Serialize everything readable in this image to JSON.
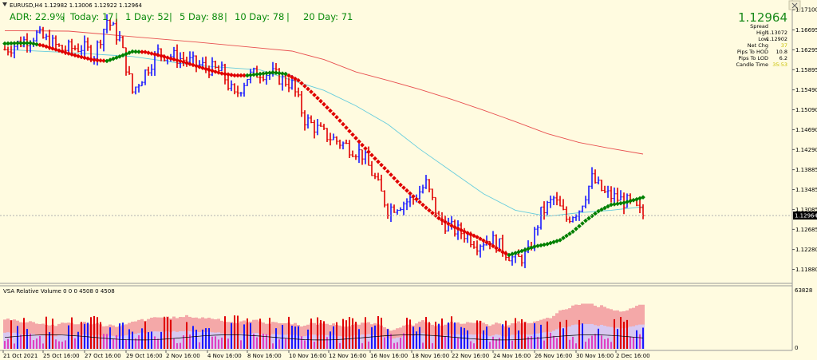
{
  "window": {
    "symbol_line": "EURUSD,H4  1.12982 1.13006 1.12922 1.12964"
  },
  "adr_bar": {
    "adr": "ADR: 22.9%",
    "today": "Today: 17",
    "day1": "1 Day: 52",
    "day5": "5 Day: 88",
    "day10": "10 Day: 78",
    "day20": "20 Day: 71",
    "sep": "|"
  },
  "info_panel": {
    "price": "1.12964",
    "spread_label": "Spread",
    "spread_value": "",
    "high_label": "High",
    "high_value": "1.13072",
    "low_label": "Low",
    "low_value": "1.12902",
    "netchg_label": "Net Chg",
    "netchg_value": "37",
    "hod_label": "Pips To HOD",
    "hod_value": "10.8",
    "lod_label": "Pips To LOD",
    "lod_value": "6.2",
    "candle_label": "Candle Time",
    "candle_value": "35:53"
  },
  "price_axis": {
    "labels": [
      "1.17100",
      "1.16695",
      "1.16295",
      "1.15895",
      "1.15490",
      "1.15090",
      "1.14690",
      "1.14290",
      "1.13885",
      "1.13485",
      "1.13085",
      "1.12685",
      "1.12280",
      "1.11880"
    ],
    "current_label": "1.12964"
  },
  "volume_panel": {
    "title": "VSA Relative Volume 0 0 0 4508 0 4508",
    "axis_top": "63828",
    "axis_bottom": "0"
  },
  "time_axis": {
    "labels": [
      "21 Oct 2021",
      "25 Oct 16:00",
      "27 Oct 16:00",
      "29 Oct 16:00",
      "2 Nov 16:00",
      "4 Nov 16:00",
      "8 Nov 16:00",
      "10 Nov 16:00",
      "12 Nov 16:00",
      "16 Nov 16:00",
      "18 Nov 16:00",
      "22 Nov 16:00",
      "24 Nov 16:00",
      "26 Nov 16:00",
      "30 Nov 16:00",
      "2 Dec 16:00"
    ]
  },
  "colors": {
    "background": "#fffbe0",
    "bull_bar": "#1a1aff",
    "bear_bar": "#e00000",
    "trend_up": "#008000",
    "trend_down": "#e00000",
    "sma_red": "#e85050",
    "sma_cyan": "#66ccdd",
    "price_green": "#1a8a1a"
  },
  "chart_data": {
    "type": "bar",
    "symbol": "EURUSD",
    "timeframe": "H4",
    "ylim": [
      1.1168,
      1.172
    ],
    "trend_line": [
      [
        0,
        1.1642
      ],
      [
        4,
        1.1643
      ],
      [
        8,
        1.1643
      ],
      [
        12,
        1.1638
      ],
      [
        16,
        1.163
      ],
      [
        20,
        1.1622
      ],
      [
        24,
        1.1615
      ],
      [
        28,
        1.1609
      ],
      [
        32,
        1.1607
      ],
      [
        36,
        1.1616
      ],
      [
        40,
        1.1626
      ],
      [
        44,
        1.1625
      ],
      [
        48,
        1.1619
      ],
      [
        52,
        1.1612
      ],
      [
        56,
        1.1605
      ],
      [
        60,
        1.1597
      ],
      [
        64,
        1.1589
      ],
      [
        68,
        1.1582
      ],
      [
        72,
        1.1578
      ],
      [
        76,
        1.1578
      ],
      [
        80,
        1.1581
      ],
      [
        84,
        1.1584
      ],
      [
        88,
        1.1581
      ],
      [
        92,
        1.1568
      ],
      [
        96,
        1.1545
      ],
      [
        100,
        1.152
      ],
      [
        104,
        1.1494
      ],
      [
        108,
        1.1466
      ],
      [
        112,
        1.1438
      ],
      [
        116,
        1.1411
      ],
      [
        120,
        1.1385
      ],
      [
        124,
        1.1358
      ],
      [
        128,
        1.1335
      ],
      [
        132,
        1.1312
      ],
      [
        136,
        1.1291
      ],
      [
        140,
        1.1276
      ],
      [
        144,
        1.1264
      ],
      [
        148,
        1.1253
      ],
      [
        152,
        1.1239
      ],
      [
        156,
        1.1223
      ],
      [
        158,
        1.1217
      ],
      [
        162,
        1.1225
      ],
      [
        166,
        1.1234
      ],
      [
        170,
        1.1239
      ],
      [
        174,
        1.1247
      ],
      [
        178,
        1.1264
      ],
      [
        182,
        1.1286
      ],
      [
        186,
        1.1305
      ],
      [
        190,
        1.1318
      ],
      [
        194,
        1.1322
      ],
      [
        198,
        1.1329
      ],
      [
        200,
        1.1333
      ]
    ],
    "trend_up_ranges": [
      [
        0,
        10
      ],
      [
        32,
        42
      ],
      [
        76,
        88
      ],
      [
        158,
        200
      ]
    ],
    "sma_cyan": [
      [
        0,
        1.163
      ],
      [
        20,
        1.1624
      ],
      [
        40,
        1.1616
      ],
      [
        60,
        1.1598
      ],
      [
        80,
        1.1589
      ],
      [
        90,
        1.1568
      ],
      [
        100,
        1.1548
      ],
      [
        110,
        1.1517
      ],
      [
        120,
        1.148
      ],
      [
        130,
        1.143
      ],
      [
        140,
        1.1385
      ],
      [
        150,
        1.134
      ],
      [
        160,
        1.1307
      ],
      [
        170,
        1.1295
      ],
      [
        180,
        1.1302
      ],
      [
        190,
        1.1307
      ],
      [
        200,
        1.1314
      ]
    ],
    "sma_red": [
      [
        0,
        1.1668
      ],
      [
        20,
        1.1667
      ],
      [
        40,
        1.1656
      ],
      [
        60,
        1.1645
      ],
      [
        80,
        1.1633
      ],
      [
        90,
        1.1627
      ],
      [
        100,
        1.161
      ],
      [
        110,
        1.1585
      ],
      [
        120,
        1.1568
      ],
      [
        130,
        1.155
      ],
      [
        140,
        1.153
      ],
      [
        150,
        1.1508
      ],
      [
        160,
        1.1485
      ],
      [
        170,
        1.1461
      ],
      [
        180,
        1.1443
      ],
      [
        190,
        1.1431
      ],
      [
        200,
        1.142
      ]
    ],
    "price_anchors": [
      [
        0,
        1.163
      ],
      [
        10,
        1.166
      ],
      [
        18,
        1.163
      ],
      [
        24,
        1.1635
      ],
      [
        28,
        1.162
      ],
      [
        32,
        1.169
      ],
      [
        36,
        1.165
      ],
      [
        40,
        1.1545
      ],
      [
        48,
        1.1625
      ],
      [
        56,
        1.161
      ],
      [
        60,
        1.16
      ],
      [
        68,
        1.1585
      ],
      [
        72,
        1.1535
      ],
      [
        76,
        1.1575
      ],
      [
        80,
        1.1585
      ],
      [
        84,
        1.158
      ],
      [
        90,
        1.156
      ],
      [
        94,
        1.149
      ],
      [
        100,
        1.146
      ],
      [
        106,
        1.144
      ],
      [
        112,
        1.142
      ],
      [
        116,
        1.137
      ],
      [
        120,
        1.131
      ],
      [
        124,
        1.132
      ],
      [
        128,
        1.133
      ],
      [
        132,
        1.136
      ],
      [
        136,
        1.129
      ],
      [
        140,
        1.127
      ],
      [
        144,
        1.126
      ],
      [
        148,
        1.124
      ],
      [
        152,
        1.125
      ],
      [
        156,
        1.123
      ],
      [
        160,
        1.1205
      ],
      [
        164,
        1.122
      ],
      [
        168,
        1.13
      ],
      [
        172,
        1.133
      ],
      [
        176,
        1.129
      ],
      [
        180,
        1.131
      ],
      [
        184,
        1.137
      ],
      [
        188,
        1.134
      ],
      [
        192,
        1.133
      ],
      [
        196,
        1.132
      ],
      [
        200,
        1.1296
      ]
    ],
    "bar_count": 200,
    "last_price": 1.12964
  }
}
